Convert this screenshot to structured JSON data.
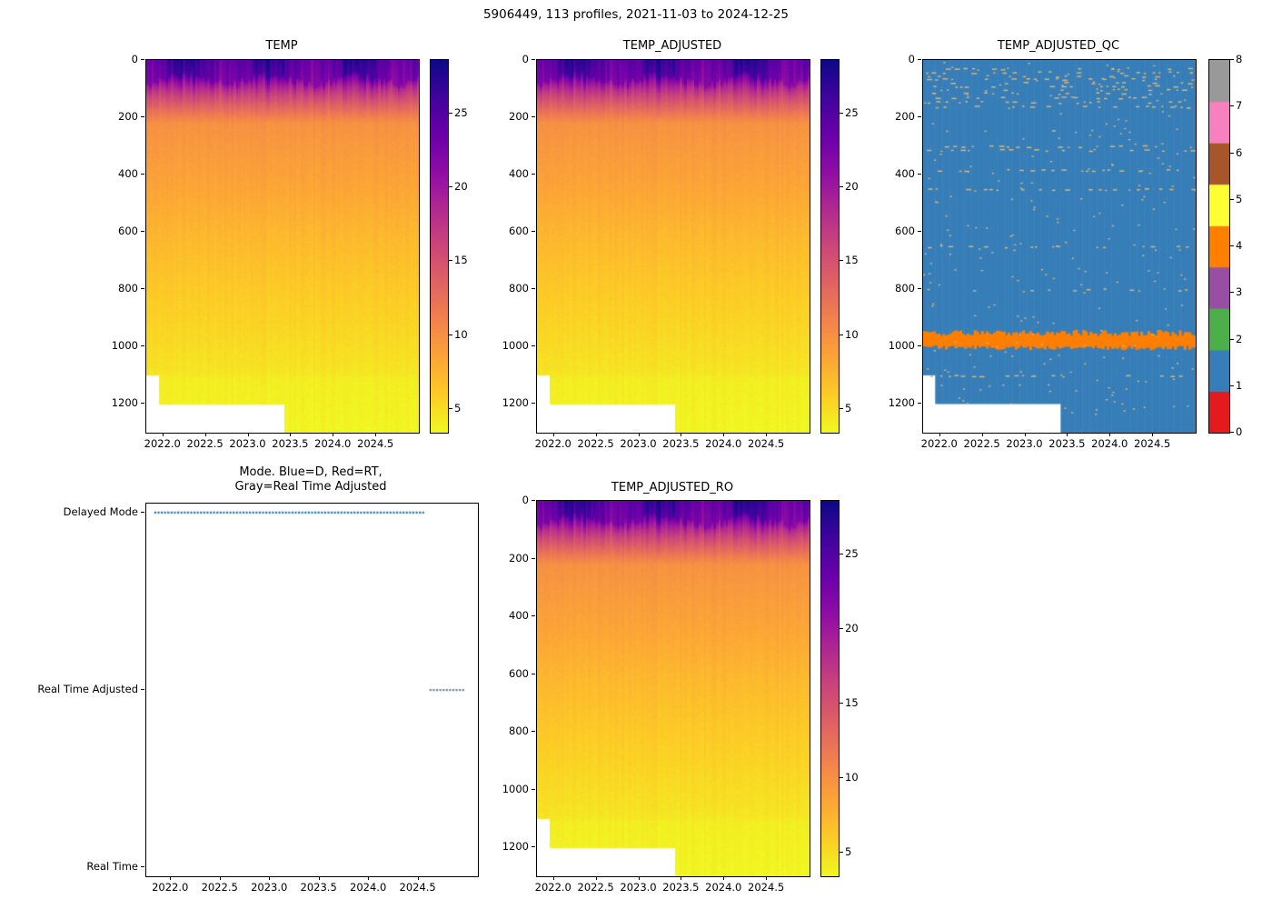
{
  "figure": {
    "title": "5906449, 113 profiles, 2021-11-03 to 2024-12-25"
  },
  "chart_data": [
    {
      "id": "temp",
      "type": "heatmap",
      "title": "TEMP",
      "xlim": [
        2021.8,
        2025.0
      ],
      "ylim": [
        1300,
        0
      ],
      "x_ticks": [
        "2022.0",
        "2022.5",
        "2023.0",
        "2023.5",
        "2024.0",
        "2024.5"
      ],
      "y_ticks": [
        "0",
        "200",
        "400",
        "600",
        "800",
        "1000",
        "1200"
      ],
      "colormap": "plasma_r",
      "vmin": 3.4,
      "vmax": 28.6,
      "colorbar_ticks": [
        "5",
        "10",
        "15",
        "20",
        "25"
      ],
      "n_profiles": 113,
      "surface_temp_range_c": [
        22,
        28.4
      ],
      "thermocline": {
        "mixed_layer_m": [
          36,
          96
        ],
        "bottom_m": 220,
        "temp_at_bottom_c": 10
      },
      "depth_temp_points": {
        "depths_m": [
          0,
          50,
          100,
          220,
          300,
          450,
          600,
          800,
          950,
          1000,
          1090,
          1110,
          1200,
          1300
        ],
        "temps_c": [
          26,
          24,
          14,
          10,
          9.4,
          8.5,
          7.4,
          6.2,
          5.4,
          5.1,
          4.6,
          4.1,
          3.9,
          3.65
        ]
      },
      "no_data": [
        {
          "before_time": 2021.95,
          "below_depth_m": 1100
        },
        {
          "before_time": 2023.42,
          "below_depth_m": 1200
        }
      ]
    },
    {
      "id": "temp_adjusted",
      "type": "heatmap",
      "title": "TEMP_ADJUSTED",
      "xlim": [
        2021.8,
        2025.0
      ],
      "ylim": [
        1300,
        0
      ],
      "x_ticks": [
        "2022.0",
        "2022.5",
        "2023.0",
        "2023.5",
        "2024.0",
        "2024.5"
      ],
      "y_ticks": [
        "0",
        "200",
        "400",
        "600",
        "800",
        "1000",
        "1200"
      ],
      "colormap": "plasma_r",
      "vmin": 3.4,
      "vmax": 28.6,
      "colorbar_ticks": [
        "5",
        "10",
        "15",
        "20",
        "25"
      ],
      "n_profiles": 113,
      "surface_temp_range_c": [
        22,
        28.4
      ],
      "thermocline": {
        "mixed_layer_m": [
          36,
          96
        ],
        "bottom_m": 220,
        "temp_at_bottom_c": 10
      },
      "depth_temp_points": {
        "depths_m": [
          0,
          50,
          100,
          220,
          300,
          450,
          600,
          800,
          950,
          1000,
          1090,
          1110,
          1200,
          1300
        ],
        "temps_c": [
          26,
          24,
          14,
          10,
          9.4,
          8.5,
          7.4,
          6.2,
          5.4,
          5.1,
          4.6,
          4.1,
          3.9,
          3.65
        ]
      },
      "no_data": [
        {
          "before_time": 2021.95,
          "below_depth_m": 1100
        },
        {
          "before_time": 2023.42,
          "below_depth_m": 1200
        }
      ]
    },
    {
      "id": "temp_adjusted_qc",
      "type": "heatmap",
      "title": "TEMP_ADJUSTED_QC",
      "xlim": [
        2021.8,
        2025.0
      ],
      "ylim": [
        1300,
        0
      ],
      "x_ticks": [
        "2022.0",
        "2022.5",
        "2023.0",
        "2023.5",
        "2024.0",
        "2024.5"
      ],
      "y_ticks": [
        "0",
        "200",
        "400",
        "600",
        "800",
        "1000",
        "1200"
      ],
      "colormap": "Set1",
      "vmin": 0,
      "vmax": 8,
      "colorbar_ticks": [
        "0",
        "1",
        "2",
        "3",
        "4",
        "5",
        "6",
        "7",
        "8"
      ],
      "qc_colors": [
        "#e41a1c",
        "#377eb8",
        "#4daf4a",
        "#984ea3",
        "#ff7f00",
        "#ffff33",
        "#a65628",
        "#f781bf",
        "#999999"
      ],
      "base_qc_value": 1,
      "band": {
        "qc_value": 4,
        "depth_top_m": 952,
        "depth_bottom_m": 1004
      },
      "speckle_color": "#d6b57c",
      "speckle_rows_depths_m": [
        30,
        42,
        55,
        66,
        78,
        90,
        102,
        115,
        130,
        146,
        162,
        300,
        313,
        383,
        450,
        650,
        800,
        1100
      ],
      "no_data": [
        {
          "before_time": 2021.95,
          "below_depth_m": 1100
        },
        {
          "before_time": 2023.42,
          "below_depth_m": 1200
        }
      ]
    },
    {
      "id": "mode",
      "type": "scatter",
      "title_line1": "Mode. Blue=D, Red=RT,",
      "title_line2": "Gray=Real Time Adjusted",
      "xlim": [
        2021.75,
        2025.1
      ],
      "categories": [
        "Delayed Mode",
        "Real Time Adjusted",
        "Real Time"
      ],
      "x_ticks": [
        "2022.0",
        "2022.5",
        "2023.0",
        "2023.5",
        "2024.0",
        "2024.5"
      ],
      "segments": [
        {
          "category": "Delayed Mode",
          "start": 2021.84,
          "end": 2024.55,
          "color": "#1f77b4"
        },
        {
          "category": "Real Time Adjusted",
          "start": 2024.62,
          "end": 2024.98,
          "color": "#708090"
        }
      ],
      "marker": "dotted"
    },
    {
      "id": "temp_adjusted_ro",
      "type": "heatmap",
      "title": "TEMP_ADJUSTED_RO",
      "xlim": [
        2021.8,
        2025.0
      ],
      "ylim": [
        1300,
        0
      ],
      "x_ticks": [
        "2022.0",
        "2022.5",
        "2023.0",
        "2023.5",
        "2024.0",
        "2024.5"
      ],
      "y_ticks": [
        "0",
        "200",
        "400",
        "600",
        "800",
        "1000",
        "1200"
      ],
      "colormap": "plasma_r",
      "vmin": 3.4,
      "vmax": 28.6,
      "colorbar_ticks": [
        "5",
        "10",
        "15",
        "20",
        "25"
      ],
      "n_profiles": 113,
      "surface_temp_range_c": [
        22,
        28.4
      ],
      "thermocline": {
        "mixed_layer_m": [
          36,
          96
        ],
        "bottom_m": 220,
        "temp_at_bottom_c": 10
      },
      "depth_temp_points": {
        "depths_m": [
          0,
          50,
          100,
          220,
          300,
          450,
          600,
          800,
          950,
          1000,
          1090,
          1110,
          1200,
          1300
        ],
        "temps_c": [
          26,
          24,
          14,
          10,
          9.4,
          8.5,
          7.4,
          6.2,
          5.4,
          5.1,
          4.6,
          4.1,
          3.9,
          3.65
        ]
      },
      "no_data": [
        {
          "before_time": 2021.95,
          "below_depth_m": 1100
        },
        {
          "before_time": 2023.42,
          "below_depth_m": 1200
        }
      ]
    }
  ]
}
